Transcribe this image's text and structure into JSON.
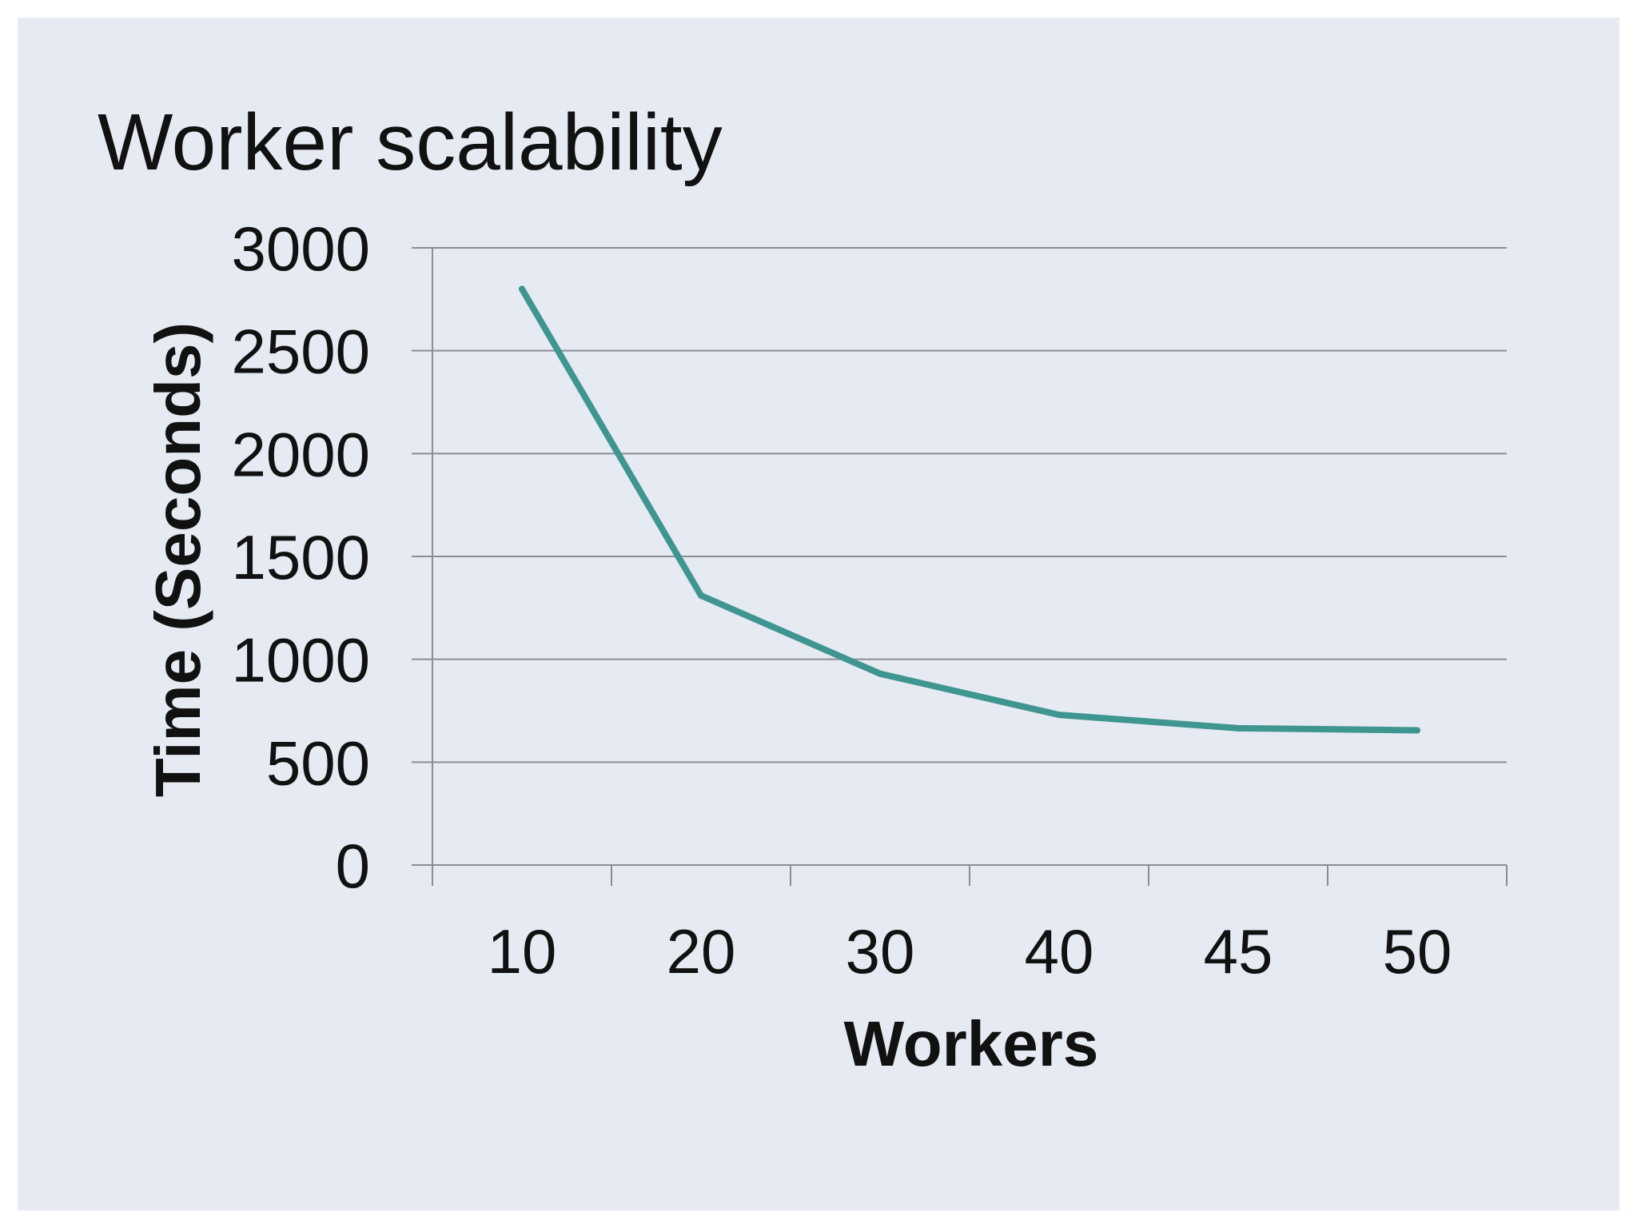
{
  "chart_data": {
    "type": "line",
    "title": "Worker scalability",
    "xlabel": "Workers",
    "ylabel": "Time (Seconds)",
    "categories": [
      "10",
      "20",
      "30",
      "40",
      "45",
      "50"
    ],
    "series": [
      {
        "values": [
          2800,
          1310,
          930,
          730,
          665,
          655
        ],
        "color": "#3f9590"
      }
    ],
    "ylim": [
      0,
      3000
    ],
    "yticks": [
      "0",
      "500",
      "1000",
      "1500",
      "2000",
      "2500",
      "3000"
    ],
    "grid": "horizontal",
    "legend": "none"
  },
  "colors": {
    "background": "#e6eaf2",
    "gridline": "#8c8c96",
    "line": "#3f9590"
  }
}
